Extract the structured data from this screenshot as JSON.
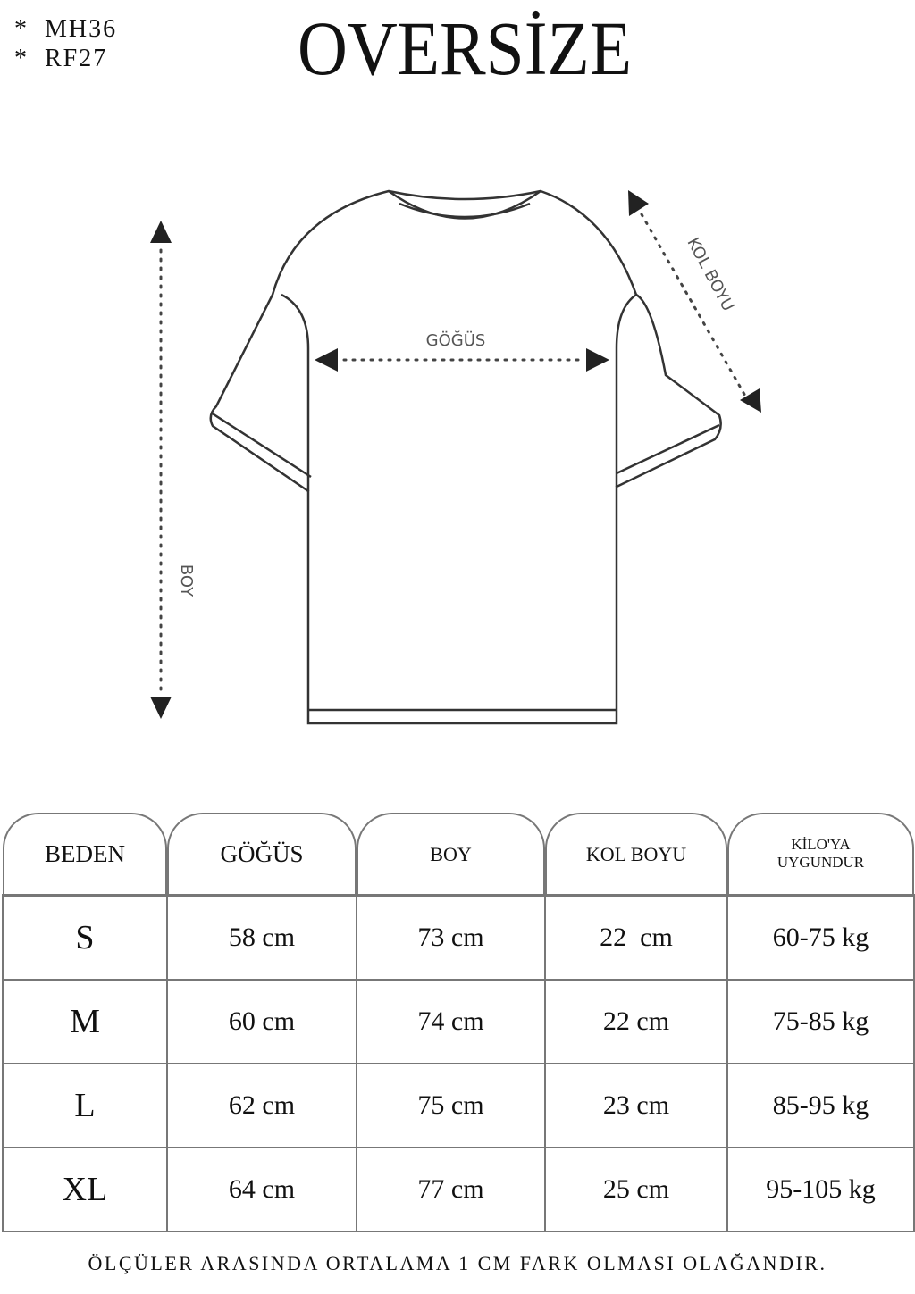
{
  "codes": [
    "MH36",
    "RF27"
  ],
  "title": "OVERSİZE",
  "diagram": {
    "chest_label": "GÖĞÜS",
    "length_label": "BOY",
    "sleeve_label": "KOL BOYU"
  },
  "table": {
    "headers": [
      "BEDEN",
      "GÖĞÜS",
      "BOY",
      "KOL BOYU",
      "KİLO'YA UYGUNDUR"
    ],
    "rows": [
      [
        "S",
        "58 cm",
        "73 cm",
        "22  cm",
        "60-75 kg"
      ],
      [
        "M",
        "60 cm",
        "74 cm",
        "22 cm",
        "75-85 kg"
      ],
      [
        "L",
        "62 cm",
        "75 cm",
        "23 cm",
        "85-95 kg"
      ],
      [
        "XL",
        "64 cm",
        "77 cm",
        "25 cm",
        "95-105 kg"
      ]
    ]
  },
  "footer": "ÖLÇÜLER ARASINDA ORTALAMA 1 CM FARK OLMASI OLAĞANDIR."
}
